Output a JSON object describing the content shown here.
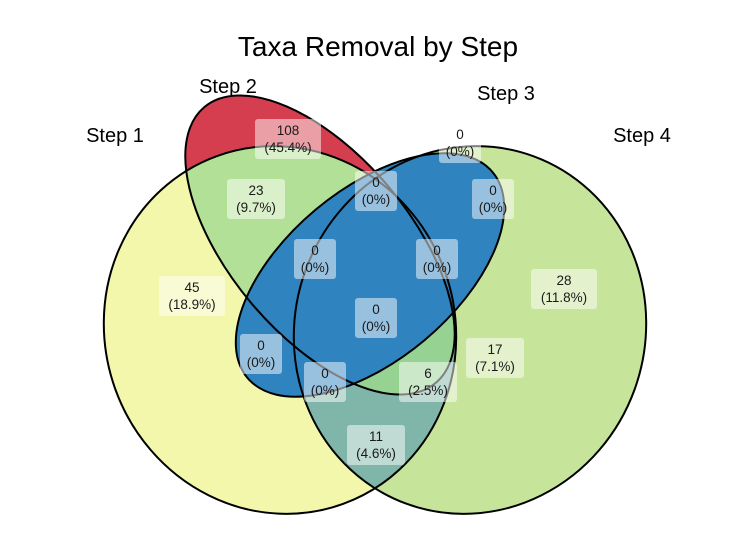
{
  "title": "Taxa Removal by Step",
  "colors": {
    "step1": "#f2f7ab",
    "step2": "#d53e4f",
    "step3": "#2f83bf",
    "step4": "#c6e59a",
    "overlap_1_2": "#b3e097",
    "overlap_4_3": "#4b9fbf",
    "overlap_4_1": "#7fb6a9",
    "overlap_4_1_3": "#2f83bf",
    "overlap_step4_only_band": "#96d392"
  },
  "sets": [
    {
      "key": "step1",
      "label": "Step 1"
    },
    {
      "key": "step2",
      "label": "Step 2"
    },
    {
      "key": "step3",
      "label": "Step 3"
    },
    {
      "key": "step4",
      "label": "Step 4"
    }
  ],
  "regions": [
    {
      "key": "r2",
      "count": "108",
      "percent": "(45.4%)"
    },
    {
      "key": "r12",
      "count": "23",
      "percent": "(9.7%)"
    },
    {
      "key": "r1",
      "count": "45",
      "percent": "(18.9%)"
    },
    {
      "key": "r3",
      "count": "0",
      "percent": "(0%)"
    },
    {
      "key": "r23",
      "count": "0",
      "percent": "(0%)"
    },
    {
      "key": "r34",
      "count": "0",
      "percent": "(0%)"
    },
    {
      "key": "r123",
      "count": "0",
      "percent": "(0%)"
    },
    {
      "key": "r234",
      "count": "0",
      "percent": "(0%)"
    },
    {
      "key": "r1234",
      "count": "0",
      "percent": "(0%)"
    },
    {
      "key": "r13",
      "count": "0",
      "percent": "(0%)"
    },
    {
      "key": "r134",
      "count": "0",
      "percent": "(0%)"
    },
    {
      "key": "r124",
      "count": "6",
      "percent": "(2.5%)"
    },
    {
      "key": "r24",
      "count": "17",
      "percent": "(7.1%)"
    },
    {
      "key": "r4",
      "count": "28",
      "percent": "(11.8%)"
    },
    {
      "key": "r14",
      "count": "11",
      "percent": "(4.6%)"
    }
  ]
}
